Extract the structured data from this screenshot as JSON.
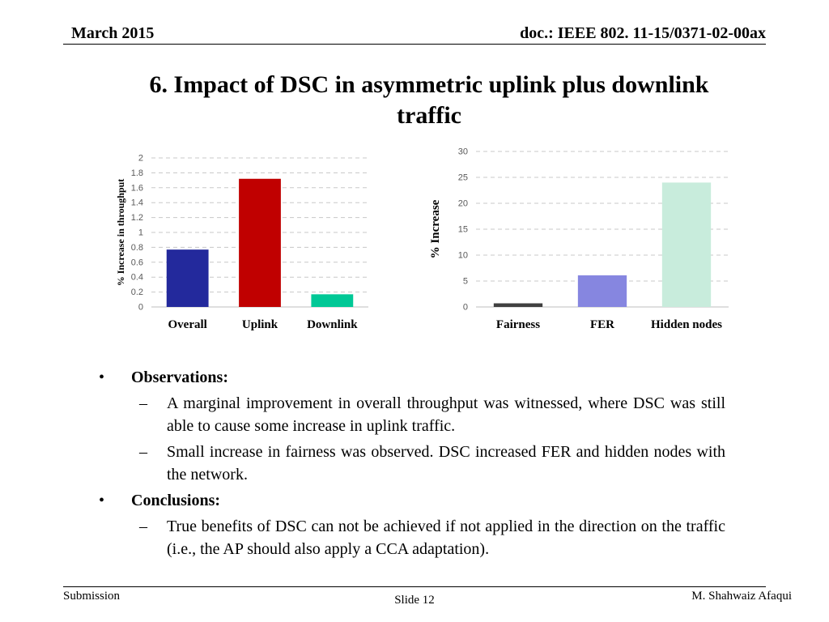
{
  "header": {
    "date": "March 2015",
    "doc_id": "doc.: IEEE 802. 11-15/0371-02-00ax"
  },
  "title": {
    "line1": "6. Impact of DSC in asymmetric uplink plus downlink",
    "line2": "traffic"
  },
  "chart_data": [
    {
      "type": "bar",
      "categories": [
        "Overall",
        "Uplink",
        "Downlink"
      ],
      "values": [
        0.77,
        1.72,
        0.17
      ],
      "bar_colors": [
        "#23299c",
        "#c00000",
        "#00c896"
      ],
      "ylabel": "% Increase in throughput",
      "ylim": [
        0,
        2
      ],
      "yticks": [
        "0",
        "0.2",
        "0.4",
        "0.6",
        "0.8",
        "1",
        "1.2",
        "1.4",
        "1.6",
        "1.8",
        "2"
      ],
      "grid": true,
      "legend": "none"
    },
    {
      "type": "bar",
      "categories": [
        "Fairness",
        "FER",
        "Hidden nodes"
      ],
      "values": [
        0.7,
        6.1,
        24
      ],
      "bar_colors": [
        "#404040",
        "#8686e0",
        "#c8ecdc"
      ],
      "ylabel": "% Increase",
      "ylim": [
        0,
        30
      ],
      "yticks": [
        "0",
        "5",
        "10",
        "15",
        "20",
        "25",
        "30"
      ],
      "grid": true,
      "legend": "none"
    }
  ],
  "body": {
    "observations_label": "Observations:",
    "observations": [
      "A marginal improvement in overall throughput was witnessed, where DSC was still able to cause some increase in uplink traffic.",
      "Small  increase in fairness was observed. DSC increased FER and hidden nodes with the network."
    ],
    "conclusions_label": "Conclusions:",
    "conclusions": [
      "True benefits of DSC can not be achieved if not applied in the direction on the traffic (i.e., the AP should also apply a CCA adaptation)."
    ],
    "bullet_glyph": "•",
    "dash_glyph": "–"
  },
  "footer": {
    "left": "Submission",
    "center": "Slide 12",
    "right": "M. Shahwaiz Afaqui"
  }
}
